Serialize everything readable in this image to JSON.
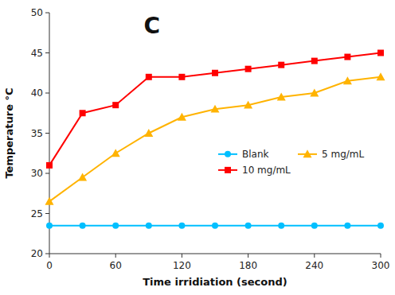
{
  "chart_data": {
    "type": "line",
    "x": [
      0,
      30,
      60,
      90,
      120,
      150,
      180,
      210,
      240,
      270,
      300
    ],
    "series": [
      {
        "name": "Blank",
        "color": "#00BFFF",
        "marker": "circle",
        "values": [
          23.5,
          23.5,
          23.5,
          23.5,
          23.5,
          23.5,
          23.5,
          23.5,
          23.5,
          23.5,
          23.5
        ]
      },
      {
        "name": "5 mg/mL",
        "color": "#FFB300",
        "marker": "triangle",
        "values": [
          26.5,
          29.5,
          32.5,
          35.0,
          37.0,
          38.0,
          38.5,
          39.5,
          40.0,
          41.5,
          42.0
        ]
      },
      {
        "name": "10 mg/mL",
        "color": "#FF0000",
        "marker": "square",
        "values": [
          31.0,
          37.5,
          38.5,
          42.0,
          42.0,
          42.5,
          43.0,
          43.5,
          44.0,
          44.5,
          45.0
        ]
      }
    ],
    "xlabel": "Time irridiation (second)",
    "ylabel": "Temperature °C",
    "annotation": "C",
    "xlim": [
      0,
      300
    ],
    "ylim": [
      20,
      50
    ],
    "xticks": [
      0,
      60,
      120,
      180,
      240,
      300
    ],
    "yticks": [
      20,
      25,
      30,
      35,
      40,
      45,
      50
    ],
    "grid": false,
    "legend": "right"
  }
}
